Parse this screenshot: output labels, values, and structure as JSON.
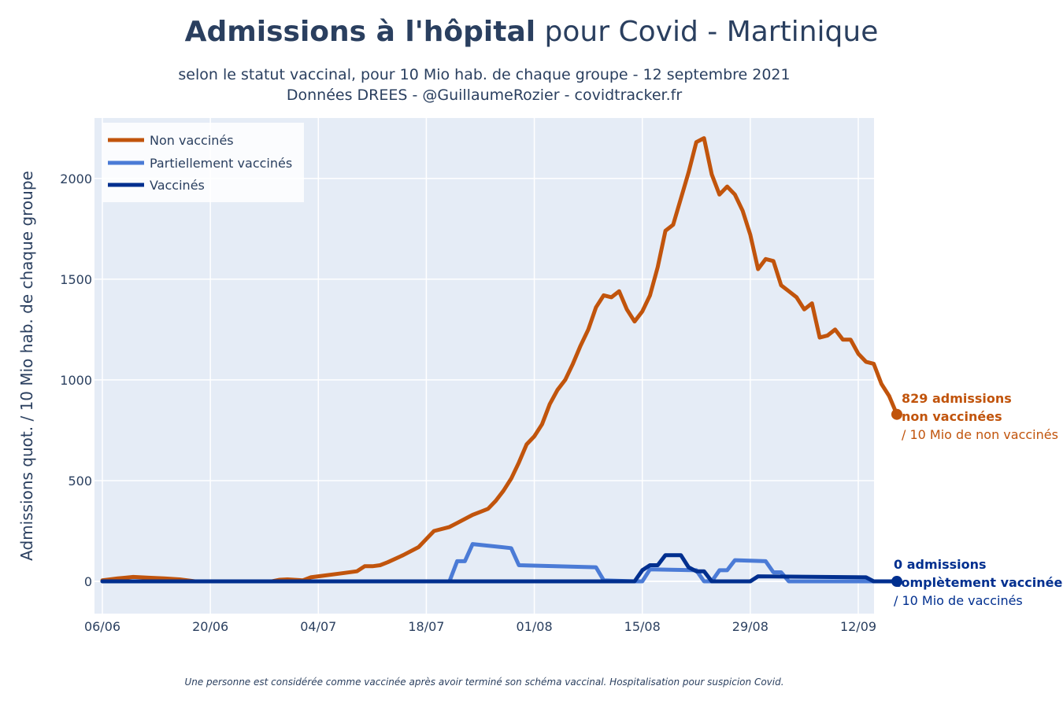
{
  "header": {
    "title_bold": "Admissions à l'hôpital",
    "title_rest": " pour Covid - Martinique",
    "subtitle_1": "selon le statut vaccinal, pour 10 Mio hab. de chaque groupe - 12 septembre 2021",
    "subtitle_2": "Données DREES - @GuillaumeRozier - covidtracker.fr"
  },
  "footnote": "Une personne est considérée comme vaccinée après avoir terminé son schéma vaccinal. Hospitalisation pour suspicion Covid.",
  "annotations": {
    "unvax_line1": "829 admissions",
    "unvax_line2": "non vaccinées",
    "unvax_line3": "/ 10 Mio de non vaccinés",
    "vax_line1": "0 admissions",
    "vax_line2": "complètement vaccinées",
    "vax_line3": "/ 10 Mio de vaccinés"
  },
  "colors": {
    "unvaccinated": "#c1540c",
    "partial": "#4b7bd6",
    "vaccinated": "#002f8f",
    "plot_bg": "#e5ecf6",
    "grid": "#ffffff"
  },
  "chart_data": {
    "type": "line",
    "title": "Admissions à l'hôpital pour Covid - Martinique",
    "xlabel": "",
    "ylabel": "Admissions quot. / 10 Mio hab. de chaque groupe",
    "x_ticks": [
      "06/06",
      "20/06",
      "04/07",
      "18/07",
      "01/08",
      "15/08",
      "29/08",
      "12/09"
    ],
    "x_range": [
      "2021-06-06",
      "2021-09-12"
    ],
    "ylim": [
      -160,
      2300
    ],
    "y_ticks": [
      0,
      500,
      1000,
      1500,
      2000
    ],
    "legend_position": "top-left",
    "grid": true,
    "series": [
      {
        "name": "Non vaccinés",
        "color": "#c1540c",
        "points": [
          [
            "2021-06-06",
            5
          ],
          [
            "2021-06-07",
            10
          ],
          [
            "2021-06-08",
            15
          ],
          [
            "2021-06-09",
            18
          ],
          [
            "2021-06-10",
            22
          ],
          [
            "2021-06-11",
            20
          ],
          [
            "2021-06-12",
            18
          ],
          [
            "2021-06-14",
            15
          ],
          [
            "2021-06-16",
            10
          ],
          [
            "2021-06-17",
            5
          ],
          [
            "2021-06-18",
            0
          ],
          [
            "2021-06-19",
            0
          ],
          [
            "2021-06-27",
            0
          ],
          [
            "2021-06-28",
            0
          ],
          [
            "2021-06-29",
            8
          ],
          [
            "2021-06-30",
            10
          ],
          [
            "2021-07-02",
            5
          ],
          [
            "2021-07-03",
            20
          ],
          [
            "2021-07-04",
            25
          ],
          [
            "2021-07-07",
            40
          ],
          [
            "2021-07-09",
            50
          ],
          [
            "2021-07-10",
            75
          ],
          [
            "2021-07-11",
            75
          ],
          [
            "2021-07-12",
            80
          ],
          [
            "2021-07-13",
            95
          ],
          [
            "2021-07-15",
            130
          ],
          [
            "2021-07-17",
            170
          ],
          [
            "2021-07-18",
            210
          ],
          [
            "2021-07-19",
            250
          ],
          [
            "2021-07-21",
            270
          ],
          [
            "2021-07-22",
            290
          ],
          [
            "2021-07-24",
            330
          ],
          [
            "2021-07-25",
            345
          ],
          [
            "2021-07-26",
            360
          ],
          [
            "2021-07-27",
            400
          ],
          [
            "2021-07-28",
            450
          ],
          [
            "2021-07-29",
            510
          ],
          [
            "2021-07-30",
            590
          ],
          [
            "2021-07-31",
            680
          ],
          [
            "2021-08-01",
            720
          ],
          [
            "2021-08-02",
            780
          ],
          [
            "2021-08-03",
            880
          ],
          [
            "2021-08-04",
            950
          ],
          [
            "2021-08-05",
            1000
          ],
          [
            "2021-08-06",
            1080
          ],
          [
            "2021-08-07",
            1170
          ],
          [
            "2021-08-08",
            1250
          ],
          [
            "2021-08-09",
            1360
          ],
          [
            "2021-08-10",
            1420
          ],
          [
            "2021-08-11",
            1410
          ],
          [
            "2021-08-12",
            1440
          ],
          [
            "2021-08-13",
            1350
          ],
          [
            "2021-08-14",
            1290
          ],
          [
            "2021-08-15",
            1340
          ],
          [
            "2021-08-16",
            1420
          ],
          [
            "2021-08-17",
            1560
          ],
          [
            "2021-08-18",
            1740
          ],
          [
            "2021-08-19",
            1770
          ],
          [
            "2021-08-20",
            1900
          ],
          [
            "2021-08-21",
            2030
          ],
          [
            "2021-08-22",
            2180
          ],
          [
            "2021-08-23",
            2200
          ],
          [
            "2021-08-24",
            2020
          ],
          [
            "2021-08-25",
            1920
          ],
          [
            "2021-08-26",
            1960
          ],
          [
            "2021-08-27",
            1920
          ],
          [
            "2021-08-28",
            1840
          ],
          [
            "2021-08-29",
            1720
          ],
          [
            "2021-08-30",
            1550
          ],
          [
            "2021-08-31",
            1600
          ],
          [
            "2021-09-01",
            1590
          ],
          [
            "2021-09-02",
            1470
          ],
          [
            "2021-09-03",
            1440
          ],
          [
            "2021-09-04",
            1410
          ],
          [
            "2021-09-05",
            1350
          ],
          [
            "2021-09-06",
            1380
          ],
          [
            "2021-09-07",
            1210
          ],
          [
            "2021-09-08",
            1220
          ],
          [
            "2021-09-09",
            1250
          ],
          [
            "2021-09-10",
            1200
          ],
          [
            "2021-09-11",
            1200
          ],
          [
            "2021-09-12",
            1130
          ],
          [
            "2021-09-13",
            1090
          ],
          [
            "2021-09-14",
            1080
          ],
          [
            "2021-09-15",
            980
          ],
          [
            "2021-09-16",
            920
          ],
          [
            "2021-09-17",
            829
          ]
        ]
      },
      {
        "name": "Partiellement vaccinés",
        "color": "#4b7bd6",
        "points": [
          [
            "2021-06-06",
            0
          ],
          [
            "2021-07-21",
            0
          ],
          [
            "2021-07-22",
            100
          ],
          [
            "2021-07-23",
            100
          ],
          [
            "2021-07-24",
            185
          ],
          [
            "2021-07-29",
            165
          ],
          [
            "2021-07-30",
            80
          ],
          [
            "2021-08-09",
            70
          ],
          [
            "2021-08-10",
            5
          ],
          [
            "2021-08-14",
            0
          ],
          [
            "2021-08-15",
            0
          ],
          [
            "2021-08-16",
            60
          ],
          [
            "2021-08-22",
            55
          ],
          [
            "2021-08-23",
            0
          ],
          [
            "2021-08-24",
            0
          ],
          [
            "2021-08-25",
            55
          ],
          [
            "2021-08-26",
            55
          ],
          [
            "2021-08-27",
            105
          ],
          [
            "2021-08-31",
            100
          ],
          [
            "2021-09-01",
            45
          ],
          [
            "2021-09-02",
            45
          ],
          [
            "2021-09-03",
            0
          ],
          [
            "2021-09-17",
            0
          ]
        ]
      },
      {
        "name": "Vaccinés",
        "color": "#002f8f",
        "points": [
          [
            "2021-06-06",
            0
          ],
          [
            "2021-08-14",
            0
          ],
          [
            "2021-08-15",
            55
          ],
          [
            "2021-08-16",
            80
          ],
          [
            "2021-08-17",
            80
          ],
          [
            "2021-08-18",
            130
          ],
          [
            "2021-08-20",
            130
          ],
          [
            "2021-08-21",
            70
          ],
          [
            "2021-08-22",
            50
          ],
          [
            "2021-08-23",
            50
          ],
          [
            "2021-08-24",
            0
          ],
          [
            "2021-08-29",
            0
          ],
          [
            "2021-08-30",
            25
          ],
          [
            "2021-09-13",
            20
          ],
          [
            "2021-09-14",
            0
          ],
          [
            "2021-09-17",
            0
          ]
        ]
      }
    ]
  }
}
